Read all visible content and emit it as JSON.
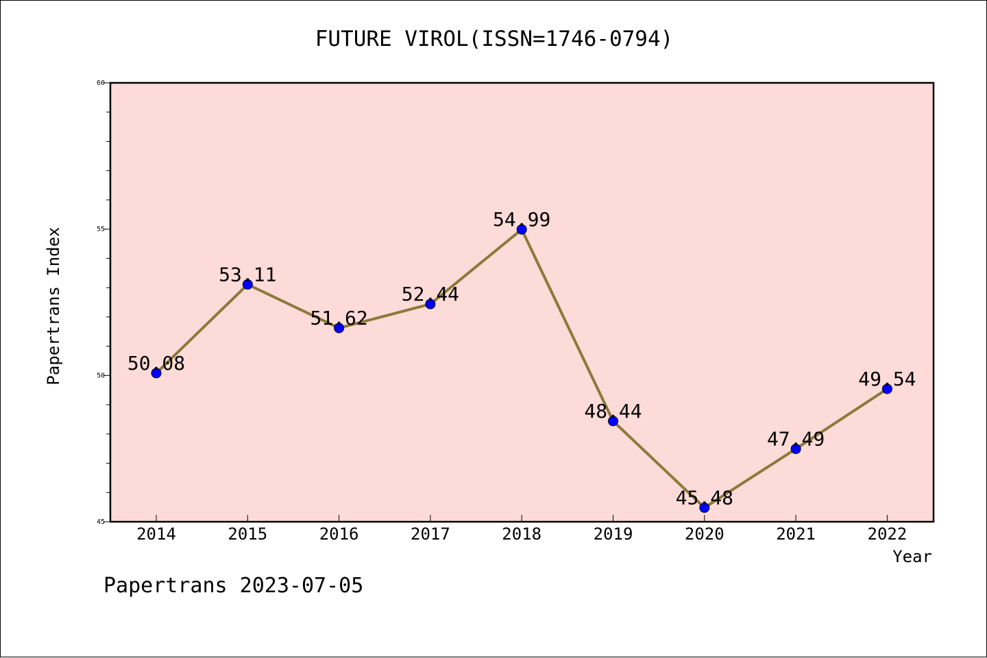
{
  "footer": {
    "text": "Papertrans 2023-07-05"
  },
  "chart_data": {
    "type": "line",
    "title": "FUTURE VIROL(ISSN=1746-0794)",
    "xlabel": "Year",
    "ylabel": "Papertrans Index",
    "categories": [
      "2014",
      "2015",
      "2016",
      "2017",
      "2018",
      "2019",
      "2020",
      "2021",
      "2022"
    ],
    "values": [
      50.08,
      53.11,
      51.62,
      52.44,
      54.99,
      48.44,
      45.48,
      47.49,
      49.54
    ],
    "data_labels": [
      "50.08",
      "53.11",
      "51.62",
      "52.44",
      "54.99",
      "48.44",
      "45.48",
      "47.49",
      "49.54"
    ],
    "ylim": [
      45,
      60
    ],
    "yticks": [
      "45",
      "50",
      "55",
      "60"
    ],
    "grid": false,
    "legend": "none",
    "colors": {
      "plot_background": "#fddbd8",
      "line": "#8b7a3a",
      "marker": "#0000ff",
      "axis": "#000000"
    }
  }
}
